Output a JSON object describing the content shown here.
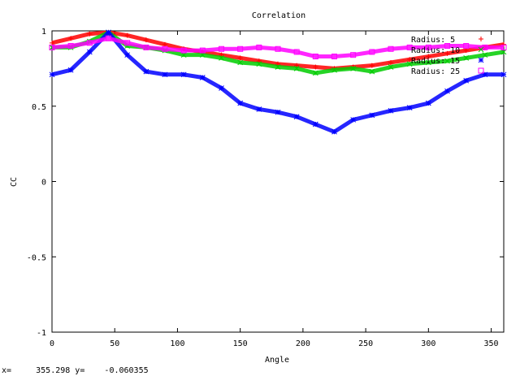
{
  "chart_data": {
    "type": "line",
    "title": "Correlation",
    "xlabel": "Angle",
    "ylabel": "CC",
    "xlim": [
      0,
      360
    ],
    "ylim": [
      -1,
      1
    ],
    "x_ticks": [
      0,
      50,
      100,
      150,
      200,
      250,
      300,
      350
    ],
    "x_tick_labels": [
      "0",
      "50",
      "100",
      "150",
      "200",
      "250",
      "300",
      "350"
    ],
    "y_ticks": [
      -1,
      -0.5,
      0,
      0.5,
      1
    ],
    "y_tick_labels": [
      "-1",
      "-0.5",
      "0",
      "0.5",
      "1"
    ],
    "grid": false,
    "legend_position": "top-right",
    "x": [
      0,
      15,
      30,
      45,
      60,
      75,
      90,
      105,
      120,
      135,
      150,
      165,
      180,
      195,
      210,
      225,
      240,
      255,
      270,
      285,
      300,
      315,
      330,
      345,
      360
    ],
    "series": [
      {
        "name": "Radius:  5",
        "color": "#ff0000",
        "marker": "+",
        "values": [
          0.92,
          0.95,
          0.98,
          0.99,
          0.97,
          0.94,
          0.91,
          0.88,
          0.86,
          0.84,
          0.82,
          0.8,
          0.78,
          0.77,
          0.76,
          0.75,
          0.76,
          0.77,
          0.79,
          0.81,
          0.83,
          0.85,
          0.87,
          0.89,
          0.91
        ]
      },
      {
        "name": "Radius:  10",
        "color": "#00cc00",
        "marker": "x",
        "values": [
          0.89,
          0.89,
          0.93,
          0.99,
          0.9,
          0.89,
          0.87,
          0.84,
          0.84,
          0.82,
          0.79,
          0.78,
          0.76,
          0.75,
          0.72,
          0.74,
          0.75,
          0.73,
          0.76,
          0.78,
          0.79,
          0.8,
          0.82,
          0.84,
          0.86
        ]
      },
      {
        "name": "Radius:  15",
        "color": "#0000ff",
        "marker": "*",
        "values": [
          0.71,
          0.74,
          0.86,
          0.99,
          0.84,
          0.73,
          0.71,
          0.71,
          0.69,
          0.62,
          0.52,
          0.48,
          0.46,
          0.43,
          0.38,
          0.33,
          0.41,
          0.44,
          0.47,
          0.49,
          0.52,
          0.6,
          0.67,
          0.71,
          0.71
        ]
      },
      {
        "name": "Radius:  25",
        "color": "#ff00ff",
        "marker": "square",
        "values": [
          0.89,
          0.9,
          0.92,
          0.95,
          0.92,
          0.89,
          0.88,
          0.87,
          0.87,
          0.88,
          0.88,
          0.89,
          0.88,
          0.86,
          0.83,
          0.83,
          0.84,
          0.86,
          0.88,
          0.89,
          0.89,
          0.9,
          0.9,
          0.89,
          0.89
        ]
      }
    ]
  },
  "status": {
    "text": "x=     355.298 y=    -0.060355"
  }
}
